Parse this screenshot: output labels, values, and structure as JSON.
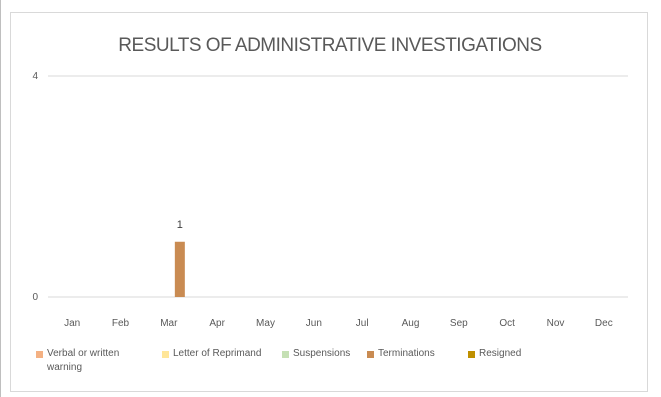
{
  "chart_data": {
    "type": "bar",
    "title": "RESULTS OF ADMINISTRATIVE INVESTIGATIONS",
    "categories": [
      "Jan",
      "Feb",
      "Mar",
      "Apr",
      "May",
      "Jun",
      "Jul",
      "Aug",
      "Sep",
      "Oct",
      "Nov",
      "Dec"
    ],
    "ylim": [
      0,
      4
    ],
    "yticks": [
      "0",
      "4"
    ],
    "grid": true,
    "legend_position": "bottom",
    "series": [
      {
        "name": "Verbal or written warning",
        "color": "#f4b183",
        "values": [
          0,
          0,
          0,
          0,
          0,
          0,
          0,
          0,
          0,
          0,
          0,
          0
        ]
      },
      {
        "name": "Letter of Reprimand",
        "color": "#ffe699",
        "values": [
          0,
          0,
          0,
          0,
          0,
          0,
          0,
          0,
          0,
          0,
          0,
          0
        ]
      },
      {
        "name": "Suspensions",
        "color": "#c5e0b4",
        "values": [
          0,
          0,
          0,
          0,
          0,
          0,
          0,
          0,
          0,
          0,
          0,
          0
        ]
      },
      {
        "name": "Terminations",
        "color": "#c98b52",
        "values": [
          0,
          0,
          1,
          0,
          0,
          0,
          0,
          0,
          0,
          0,
          0,
          0
        ]
      },
      {
        "name": "Resigned",
        "color": "#bf9000",
        "values": [
          0,
          0,
          0,
          0,
          0,
          0,
          0,
          0,
          0,
          0,
          0,
          0
        ]
      }
    ],
    "data_labels": [
      {
        "category": "Mar",
        "series": "Terminations",
        "text": "1"
      }
    ]
  }
}
